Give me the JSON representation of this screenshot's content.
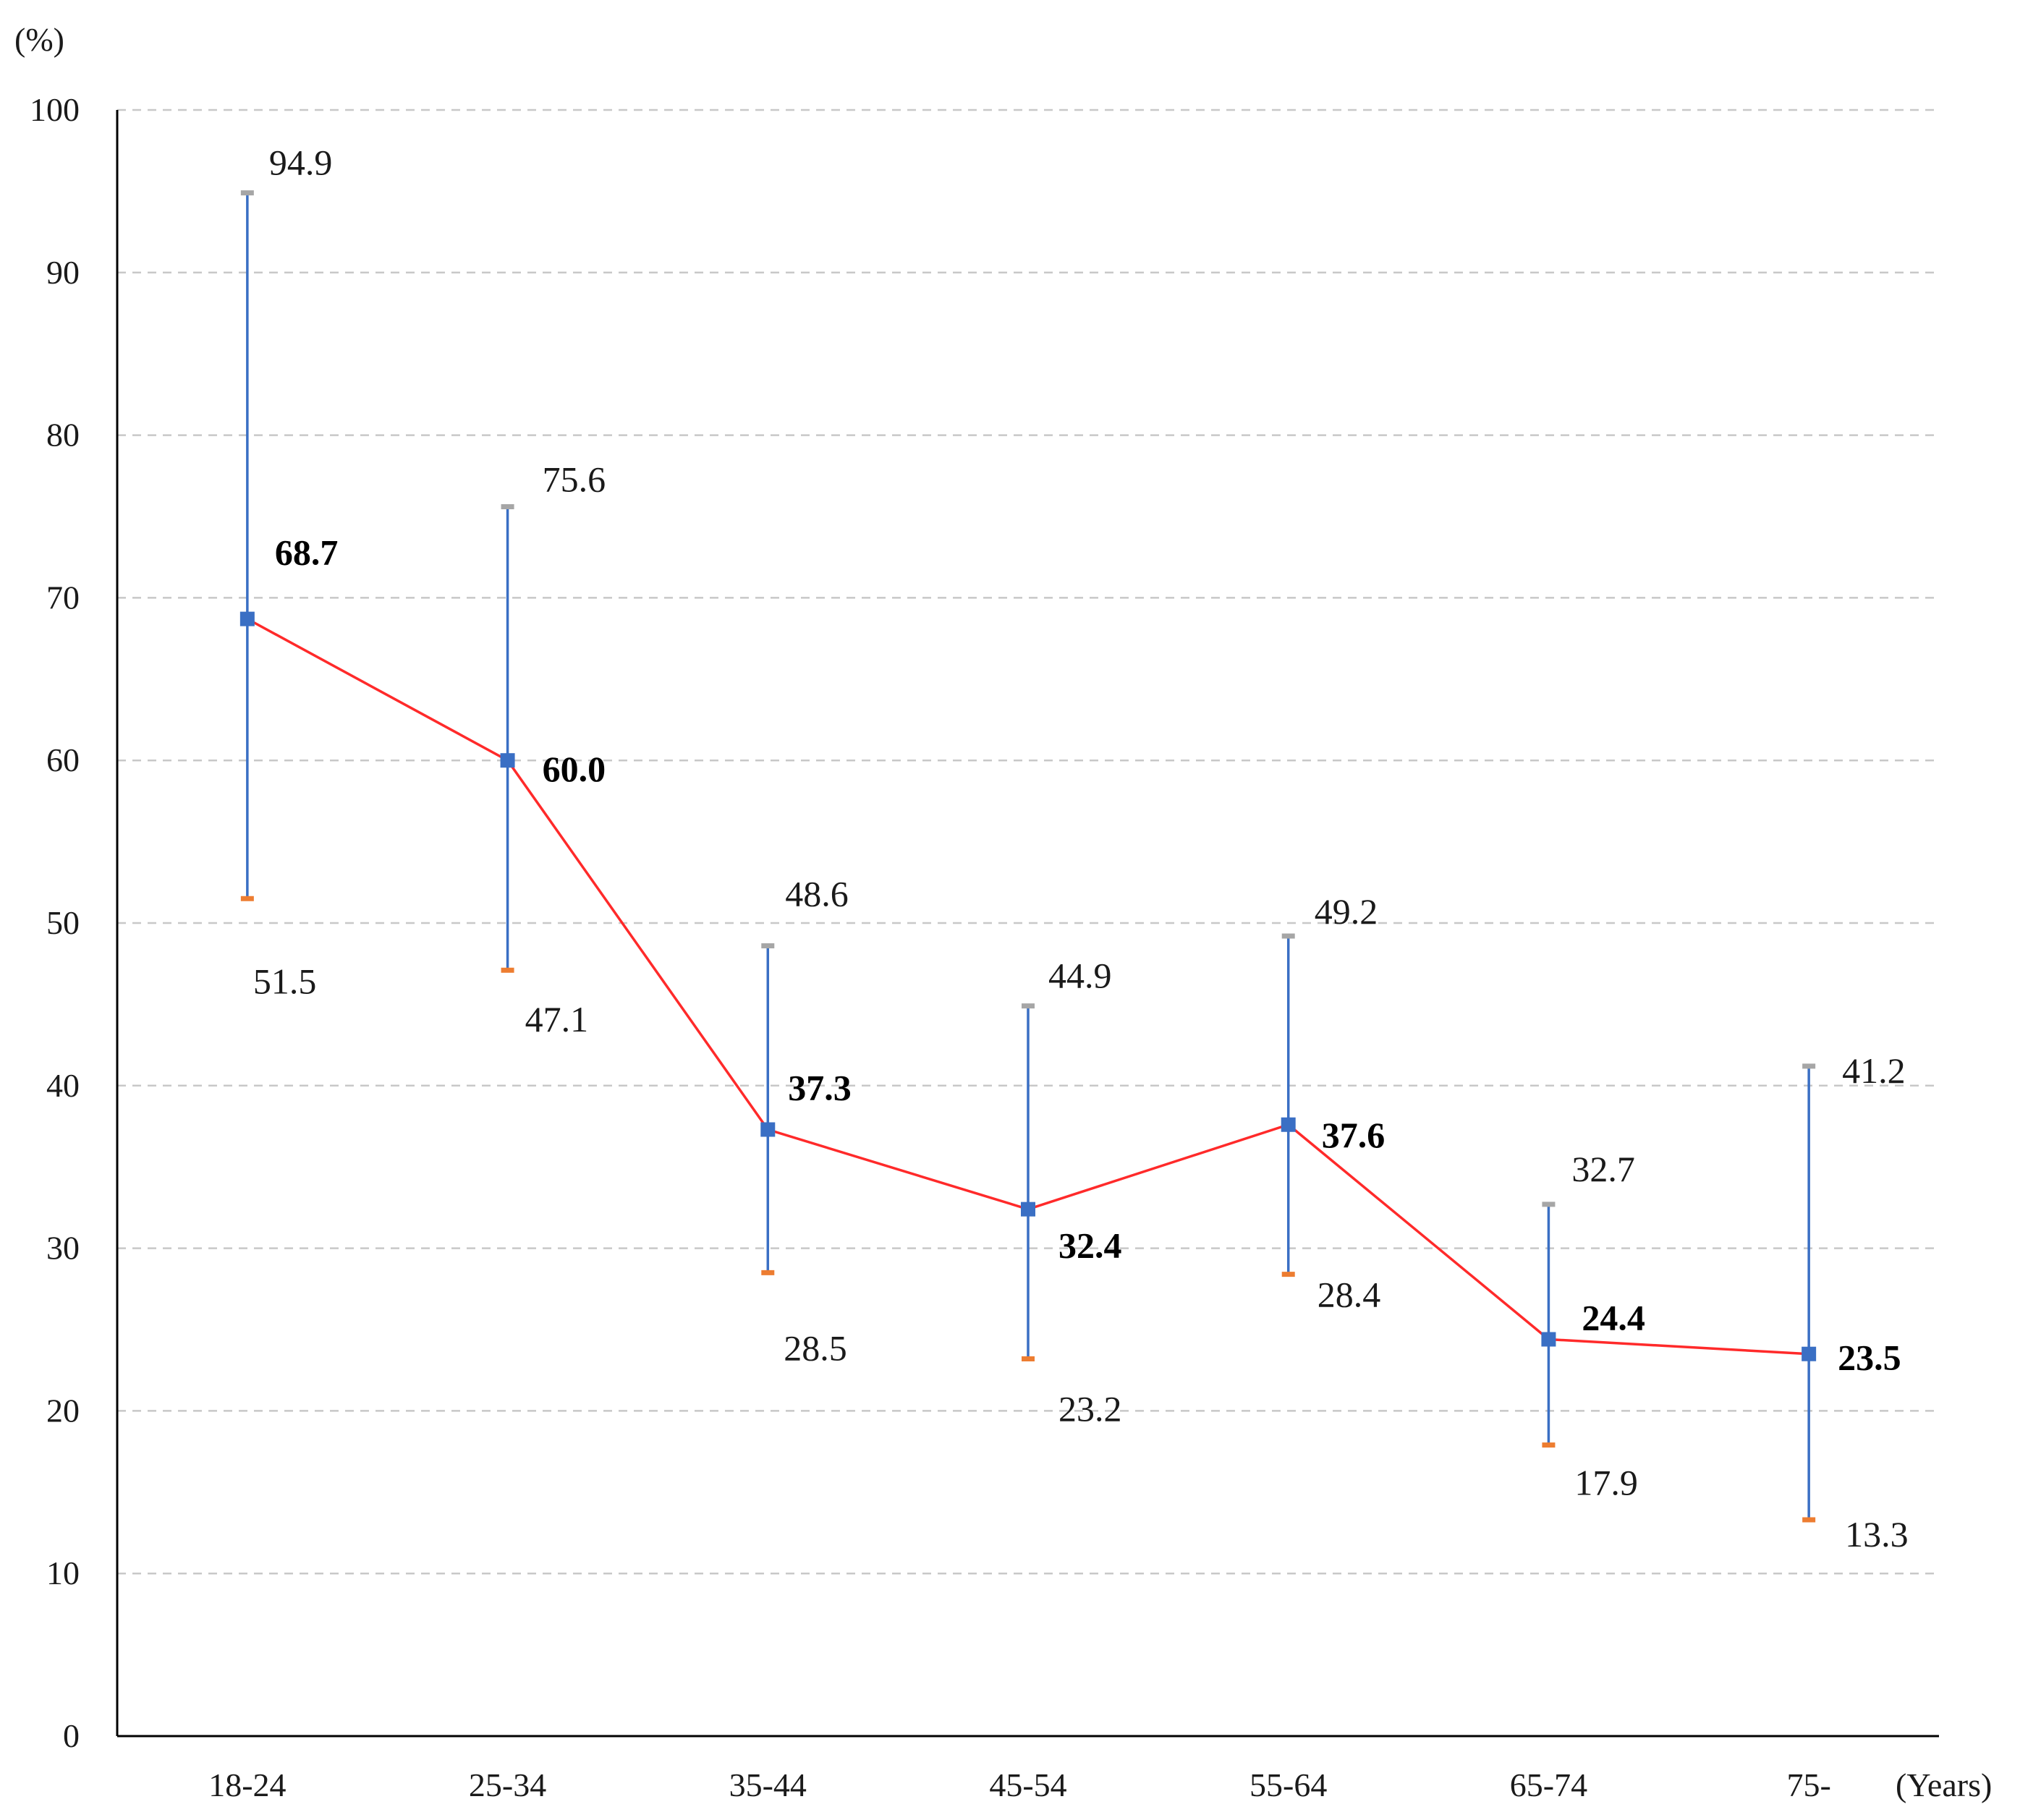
{
  "chart_data": {
    "type": "line",
    "y_unit_label": "(%)",
    "x_unit_label": "(Years)",
    "categories": [
      "18-24",
      "25-34",
      "35-44",
      "45-54",
      "55-64",
      "65-74",
      "75-"
    ],
    "series": [
      {
        "values": [
          68.7,
          60.0,
          37.3,
          32.4,
          37.6,
          24.4,
          23.5
        ],
        "value_labels": [
          "68.7",
          "60.0",
          "37.3",
          "32.4",
          "37.6",
          "24.4",
          "23.5"
        ],
        "upper": [
          94.9,
          75.6,
          48.6,
          44.9,
          49.2,
          32.7,
          41.2
        ],
        "upper_labels": [
          "94.9",
          "75.6",
          "48.6",
          "44.9",
          "49.2",
          "32.7",
          "41.2"
        ],
        "lower": [
          51.5,
          47.1,
          28.5,
          23.2,
          28.4,
          17.9,
          13.3
        ],
        "lower_labels": [
          "51.5",
          "47.1",
          "28.5",
          "23.2",
          "28.4",
          "17.9",
          "13.3"
        ]
      }
    ],
    "ylim": [
      0,
      100
    ],
    "yticks": [
      "0",
      "10",
      "20",
      "30",
      "40",
      "50",
      "60",
      "70",
      "80",
      "90",
      "100"
    ],
    "grid": true,
    "colors": {
      "line": "#ff2a2a",
      "marker": "#3a6fc4",
      "error_bar": "#3a6fc4",
      "upper_cap": "#a6a6a6",
      "lower_cap": "#ed7d31",
      "grid": "#c8c8c8",
      "axis": "#000000"
    }
  }
}
